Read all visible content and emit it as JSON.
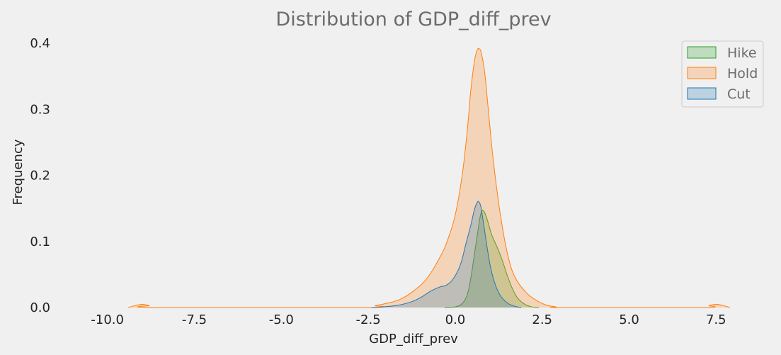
{
  "chart_data": {
    "type": "area",
    "subtype": "kde",
    "title": "Distribution of GDP_diff_prev",
    "xlabel": "GDP_diff_prev",
    "ylabel": "Frequency",
    "xlim": [
      -11.5,
      9.0
    ],
    "ylim": [
      0,
      0.4
    ],
    "x_ticks": [
      -10.0,
      -7.5,
      -5.0,
      -2.5,
      0.0,
      2.5,
      5.0,
      7.5
    ],
    "x_tick_labels": [
      "-10.0",
      "-7.5",
      "-5.0",
      "-2.5",
      "0.0",
      "2.5",
      "5.0",
      "7.5"
    ],
    "y_ticks": [
      0.0,
      0.1,
      0.2,
      0.3,
      0.4
    ],
    "y_tick_labels": [
      "0.0",
      "0.1",
      "0.2",
      "0.3",
      "0.4"
    ],
    "grid": false,
    "legend_position": "top-right",
    "series": [
      {
        "name": "Hike",
        "color": "#2ca02c",
        "points": [
          [
            -0.3,
            0
          ],
          [
            0.0,
            0.001
          ],
          [
            0.2,
            0.006
          ],
          [
            0.35,
            0.02
          ],
          [
            0.45,
            0.045
          ],
          [
            0.55,
            0.08
          ],
          [
            0.65,
            0.115
          ],
          [
            0.72,
            0.138
          ],
          [
            0.78,
            0.147
          ],
          [
            0.85,
            0.143
          ],
          [
            0.95,
            0.128
          ],
          [
            1.05,
            0.11
          ],
          [
            1.2,
            0.092
          ],
          [
            1.35,
            0.072
          ],
          [
            1.5,
            0.048
          ],
          [
            1.65,
            0.028
          ],
          [
            1.8,
            0.014
          ],
          [
            2.0,
            0.005
          ],
          [
            2.2,
            0.001
          ],
          [
            2.4,
            0
          ]
        ]
      },
      {
        "name": "Hold",
        "color": "#ff7f0e",
        "points": [
          [
            -9.4,
            0
          ],
          [
            -9.2,
            0.003
          ],
          [
            -9.0,
            0.005
          ],
          [
            -8.8,
            0.003
          ],
          [
            -8.6,
            0
          ],
          [
            -2.6,
            0
          ],
          [
            -2.3,
            0.003
          ],
          [
            -2.0,
            0.006
          ],
          [
            -1.6,
            0.012
          ],
          [
            -1.2,
            0.025
          ],
          [
            -0.8,
            0.045
          ],
          [
            -0.4,
            0.08
          ],
          [
            -0.2,
            0.105
          ],
          [
            0.0,
            0.14
          ],
          [
            0.2,
            0.2
          ],
          [
            0.35,
            0.27
          ],
          [
            0.45,
            0.33
          ],
          [
            0.55,
            0.372
          ],
          [
            0.62,
            0.388
          ],
          [
            0.68,
            0.392
          ],
          [
            0.75,
            0.385
          ],
          [
            0.85,
            0.355
          ],
          [
            0.95,
            0.3
          ],
          [
            1.1,
            0.22
          ],
          [
            1.3,
            0.14
          ],
          [
            1.5,
            0.082
          ],
          [
            1.7,
            0.048
          ],
          [
            2.0,
            0.025
          ],
          [
            2.3,
            0.012
          ],
          [
            2.6,
            0.004
          ],
          [
            2.9,
            0.001
          ],
          [
            3.1,
            0
          ],
          [
            7.1,
            0
          ],
          [
            7.3,
            0.003
          ],
          [
            7.5,
            0.005
          ],
          [
            7.7,
            0.003
          ],
          [
            7.9,
            0
          ]
        ]
      },
      {
        "name": "Cut",
        "color": "#1f77b4",
        "points": [
          [
            -2.4,
            0
          ],
          [
            -2.1,
            0.001
          ],
          [
            -1.7,
            0.003
          ],
          [
            -1.3,
            0.008
          ],
          [
            -1.0,
            0.015
          ],
          [
            -0.7,
            0.025
          ],
          [
            -0.45,
            0.031
          ],
          [
            -0.25,
            0.034
          ],
          [
            -0.05,
            0.044
          ],
          [
            0.15,
            0.065
          ],
          [
            0.3,
            0.095
          ],
          [
            0.45,
            0.125
          ],
          [
            0.55,
            0.148
          ],
          [
            0.63,
            0.159
          ],
          [
            0.68,
            0.16
          ],
          [
            0.74,
            0.152
          ],
          [
            0.82,
            0.125
          ],
          [
            0.92,
            0.09
          ],
          [
            1.02,
            0.06
          ],
          [
            1.15,
            0.035
          ],
          [
            1.3,
            0.018
          ],
          [
            1.5,
            0.007
          ],
          [
            1.7,
            0.002
          ],
          [
            1.9,
            0
          ]
        ]
      }
    ]
  }
}
